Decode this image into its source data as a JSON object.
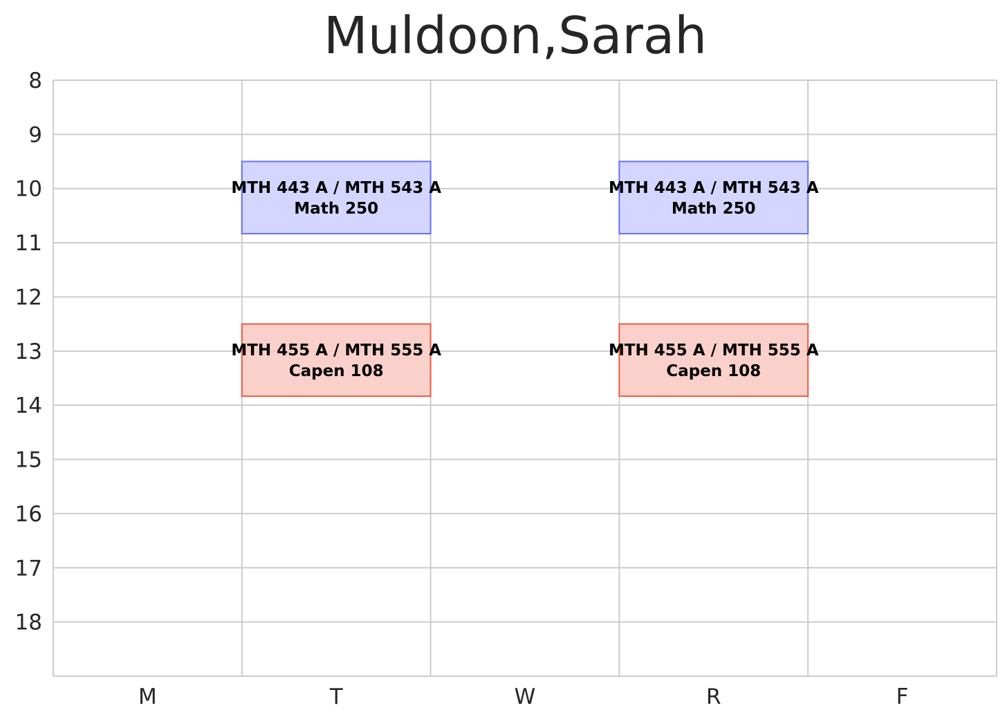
{
  "chart_data": {
    "type": "schedule",
    "title": "Muldoon,Sarah",
    "categories": [
      "M",
      "T",
      "W",
      "R",
      "F"
    ],
    "yticks": [
      8,
      9,
      10,
      11,
      12,
      13,
      14,
      15,
      16,
      17,
      18
    ],
    "ylim": [
      19,
      8
    ],
    "grid": true,
    "events": [
      {
        "day": "T",
        "start": 9.5,
        "end": 10.833,
        "course": "MTH 443 A / MTH 543 A",
        "room": "Math 250",
        "fill": "#d0d2ff",
        "edge": "#6470ff"
      },
      {
        "day": "R",
        "start": 9.5,
        "end": 10.833,
        "course": "MTH 443 A / MTH 543 A",
        "room": "Math 250",
        "fill": "#d0d2ff",
        "edge": "#6470ff"
      },
      {
        "day": "T",
        "start": 12.5,
        "end": 13.833,
        "course": "MTH 455 A / MTH 555 A",
        "room": "Capen 108",
        "fill": "#f8cbc4",
        "edge": "#f05a40"
      },
      {
        "day": "R",
        "start": 12.5,
        "end": 13.833,
        "course": "MTH 455 A / MTH 555 A",
        "room": "Capen 108",
        "fill": "#f8cbc4",
        "edge": "#f05a40"
      }
    ]
  }
}
